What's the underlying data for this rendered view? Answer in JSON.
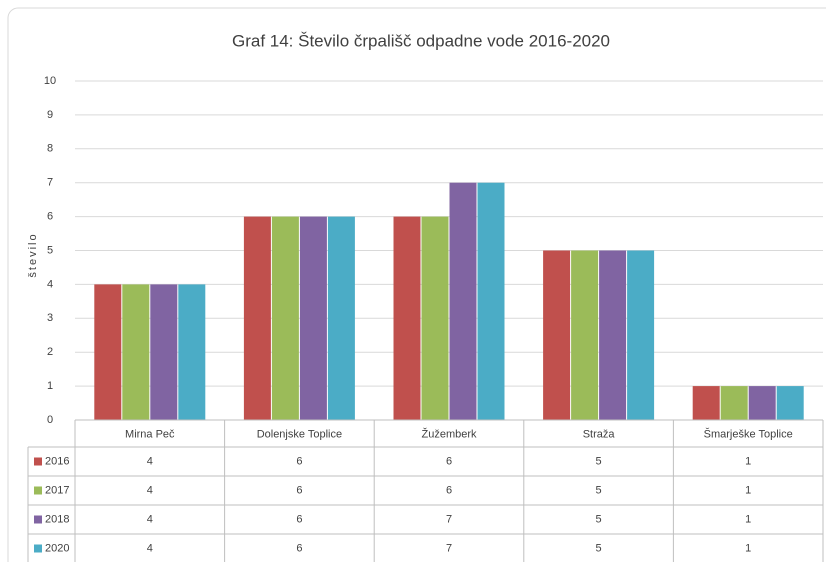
{
  "chart_data": {
    "type": "bar",
    "title": "Graf 14: Število črpališč odpadne vode  2016-2020",
    "y_label": "število",
    "categories": [
      "Mirna Peč",
      "Dolenjske Toplice",
      "Žužemberk",
      "Straža",
      "Šmarješke Toplice"
    ],
    "series": [
      {
        "name": "2016",
        "color": "#c0504d",
        "values": [
          4,
          6,
          6,
          5,
          1
        ]
      },
      {
        "name": "2017",
        "color": "#9bbb59",
        "values": [
          4,
          6,
          6,
          5,
          1
        ]
      },
      {
        "name": "2018",
        "color": "#8064a2",
        "values": [
          4,
          6,
          7,
          5,
          1
        ]
      },
      {
        "name": "2020",
        "color": "#4bacc6",
        "values": [
          4,
          6,
          7,
          5,
          1
        ]
      }
    ],
    "ylim": [
      0,
      10
    ],
    "yticks": [
      0,
      1,
      2,
      3,
      4,
      5,
      6,
      7,
      8,
      9,
      10
    ],
    "grid": true,
    "data_table": true
  }
}
